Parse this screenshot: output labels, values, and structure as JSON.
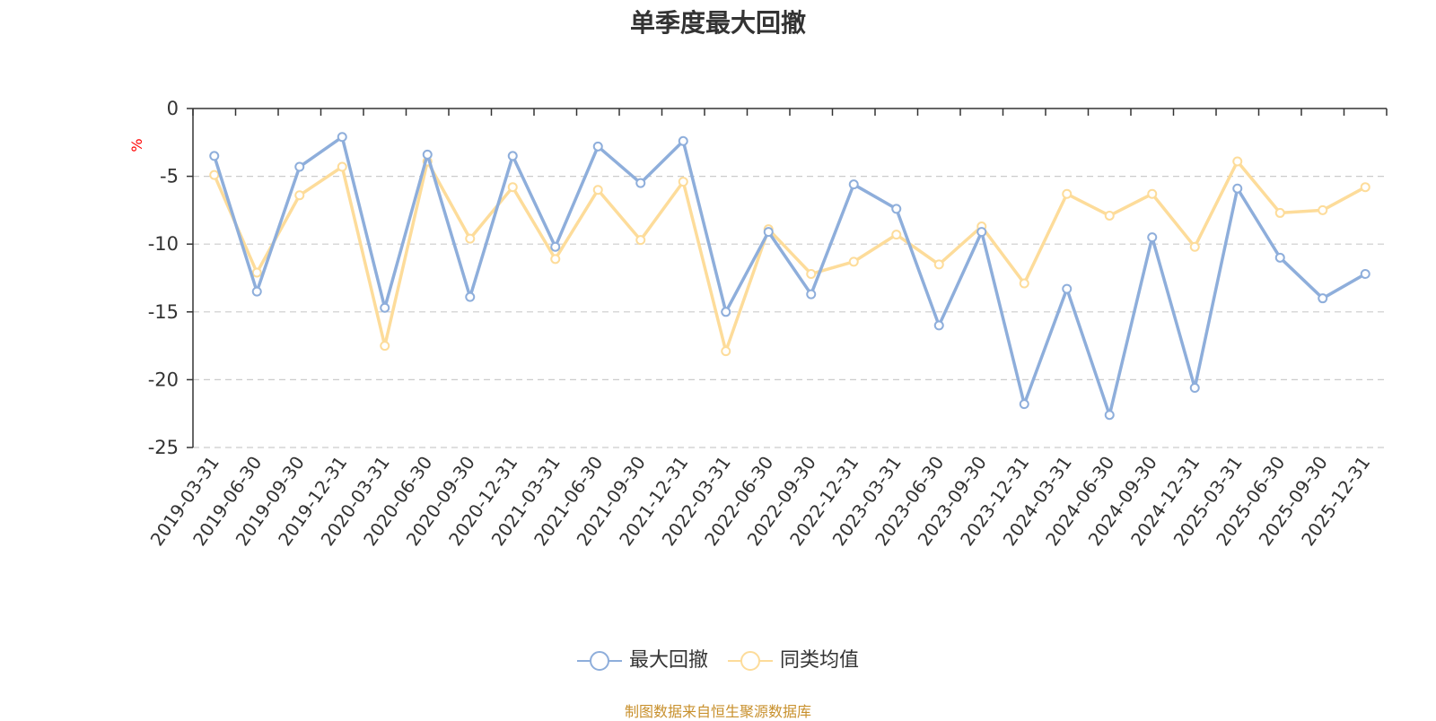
{
  "colors": {
    "series1": "#8eaedb",
    "series2": "#fddc9a",
    "axis": "#333333",
    "grid": "#cccccc",
    "unit": "#ff0000",
    "source": "#c8902c"
  },
  "legend": [
    {
      "label": "最大回撤",
      "icon": "circle-line-marker-blue-icon"
    },
    {
      "label": "同类均值",
      "icon": "circle-line-marker-yellow-icon"
    }
  ],
  "source_note": "制图数据来自恒生聚源数据库",
  "chart_data": {
    "type": "line",
    "title": "单季度最大回撤",
    "ylabel": "%",
    "xlabel": "",
    "ylim": [
      -25,
      0
    ],
    "yticks": [
      0,
      -5,
      -10,
      -15,
      -20,
      -25
    ],
    "grid": true,
    "legend_position": "bottom-center",
    "categories": [
      "2019-03-31",
      "2019-06-30",
      "2019-09-30",
      "2019-12-31",
      "2020-03-31",
      "2020-06-30",
      "2020-09-30",
      "2020-12-31",
      "2021-03-31",
      "2021-06-30",
      "2021-09-30",
      "2021-12-31",
      "2022-03-31",
      "2022-06-30",
      "2022-09-30",
      "2022-12-31",
      "2023-03-31",
      "2023-06-30",
      "2023-09-30",
      "2023-12-31",
      "2024-03-31",
      "2024-06-30",
      "2024-09-30",
      "2024-12-31",
      "2025-03-31",
      "2025-06-30",
      "2025-09-30",
      "2025-12-31"
    ],
    "series": [
      {
        "name": "最大回撤",
        "values": [
          -3.5,
          -13.5,
          -4.3,
          -2.1,
          -14.7,
          -3.4,
          -13.9,
          -3.5,
          -10.2,
          -2.8,
          -5.5,
          -2.4,
          -15.0,
          -9.1,
          -13.7,
          -5.6,
          -7.4,
          -16.0,
          -9.1,
          -21.8,
          -13.3,
          -22.6,
          -9.5,
          -20.6,
          -5.9,
          -11.0,
          -14.0,
          -12.2
        ]
      },
      {
        "name": "同类均值",
        "values": [
          -4.9,
          -12.1,
          -6.4,
          -4.3,
          -17.5,
          -3.9,
          -9.6,
          -5.8,
          -11.1,
          -6.0,
          -9.7,
          -5.4,
          -17.9,
          -8.9,
          -12.2,
          -11.3,
          -9.3,
          -11.5,
          -8.7,
          -12.9,
          -6.3,
          -7.9,
          -6.3,
          -10.2,
          -3.9,
          -7.7,
          -7.5,
          -5.8
        ]
      }
    ]
  }
}
